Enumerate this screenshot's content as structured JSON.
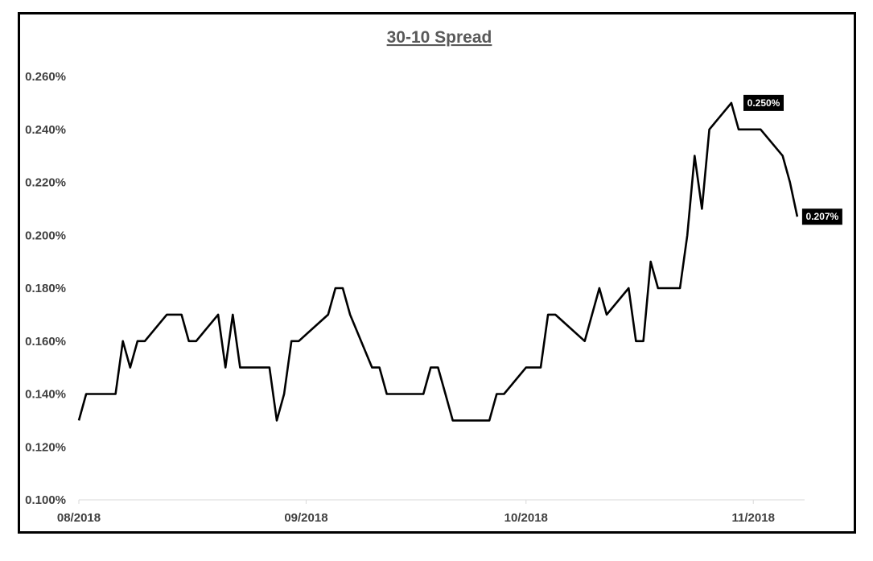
{
  "chart_data": {
    "type": "line",
    "title": "30-10  Spread",
    "xlabel": "",
    "ylabel": "",
    "ylim": [
      0.1,
      0.26
    ],
    "yticks": [
      "0.100%",
      "0.120%",
      "0.140%",
      "0.160%",
      "0.180%",
      "0.200%",
      "0.220%",
      "0.240%",
      "0.260%"
    ],
    "ytick_values": [
      0.1,
      0.12,
      0.14,
      0.16,
      0.18,
      0.2,
      0.22,
      0.24,
      0.26
    ],
    "xtick_labels": [
      "08/2018",
      "09/2018",
      "10/2018",
      "11/2018"
    ],
    "xtick_dates": [
      "2018-08-01",
      "2018-09-01",
      "2018-10-01",
      "2018-11-01"
    ],
    "xlim": [
      "2018-08-01",
      "2018-11-08"
    ],
    "grid": false,
    "legend": "none",
    "line_color": "#000000",
    "series": [
      {
        "x": [
          "2018-08-01",
          "2018-08-02",
          "2018-08-03",
          "2018-08-06",
          "2018-08-07",
          "2018-08-08",
          "2018-08-09",
          "2018-08-10",
          "2018-08-13",
          "2018-08-14",
          "2018-08-15",
          "2018-08-16",
          "2018-08-17",
          "2018-08-20",
          "2018-08-21",
          "2018-08-22",
          "2018-08-23",
          "2018-08-24",
          "2018-08-27",
          "2018-08-28",
          "2018-08-29",
          "2018-08-30",
          "2018-08-31",
          "2018-09-04",
          "2018-09-05",
          "2018-09-06",
          "2018-09-07",
          "2018-09-10",
          "2018-09-11",
          "2018-09-12",
          "2018-09-13",
          "2018-09-14",
          "2018-09-17",
          "2018-09-18",
          "2018-09-19",
          "2018-09-20",
          "2018-09-21",
          "2018-09-24",
          "2018-09-25",
          "2018-09-26",
          "2018-09-27",
          "2018-09-28",
          "2018-10-01",
          "2018-10-02",
          "2018-10-03",
          "2018-10-04",
          "2018-10-05",
          "2018-10-09",
          "2018-10-10",
          "2018-10-11",
          "2018-10-12",
          "2018-10-15",
          "2018-10-16",
          "2018-10-17",
          "2018-10-18",
          "2018-10-19",
          "2018-10-22",
          "2018-10-23",
          "2018-10-24",
          "2018-10-25",
          "2018-10-26",
          "2018-10-29",
          "2018-10-30",
          "2018-10-31",
          "2018-11-01",
          "2018-11-02",
          "2018-11-05",
          "2018-11-06",
          "2018-11-07"
        ],
        "values": [
          0.13,
          0.14,
          0.14,
          0.14,
          0.16,
          0.15,
          0.16,
          0.16,
          0.17,
          0.17,
          0.17,
          0.16,
          0.16,
          0.17,
          0.15,
          0.17,
          0.15,
          0.15,
          0.15,
          0.13,
          0.14,
          0.16,
          0.16,
          0.17,
          0.18,
          0.18,
          0.17,
          0.15,
          0.15,
          0.14,
          0.14,
          0.14,
          0.14,
          0.15,
          0.15,
          0.14,
          0.13,
          0.13,
          0.13,
          0.13,
          0.14,
          0.14,
          0.15,
          0.15,
          0.15,
          0.17,
          0.17,
          0.16,
          0.17,
          0.18,
          0.17,
          0.18,
          0.16,
          0.16,
          0.19,
          0.18,
          0.18,
          0.2,
          0.23,
          0.21,
          0.24,
          0.25,
          0.24,
          0.24,
          0.24,
          0.24,
          0.23,
          0.22,
          0.207
        ]
      }
    ],
    "annotations": [
      {
        "label": "0.250%",
        "x": "2018-10-30",
        "y": 0.25
      },
      {
        "label": "0.207%",
        "x": "2018-11-07",
        "y": 0.207
      }
    ]
  }
}
